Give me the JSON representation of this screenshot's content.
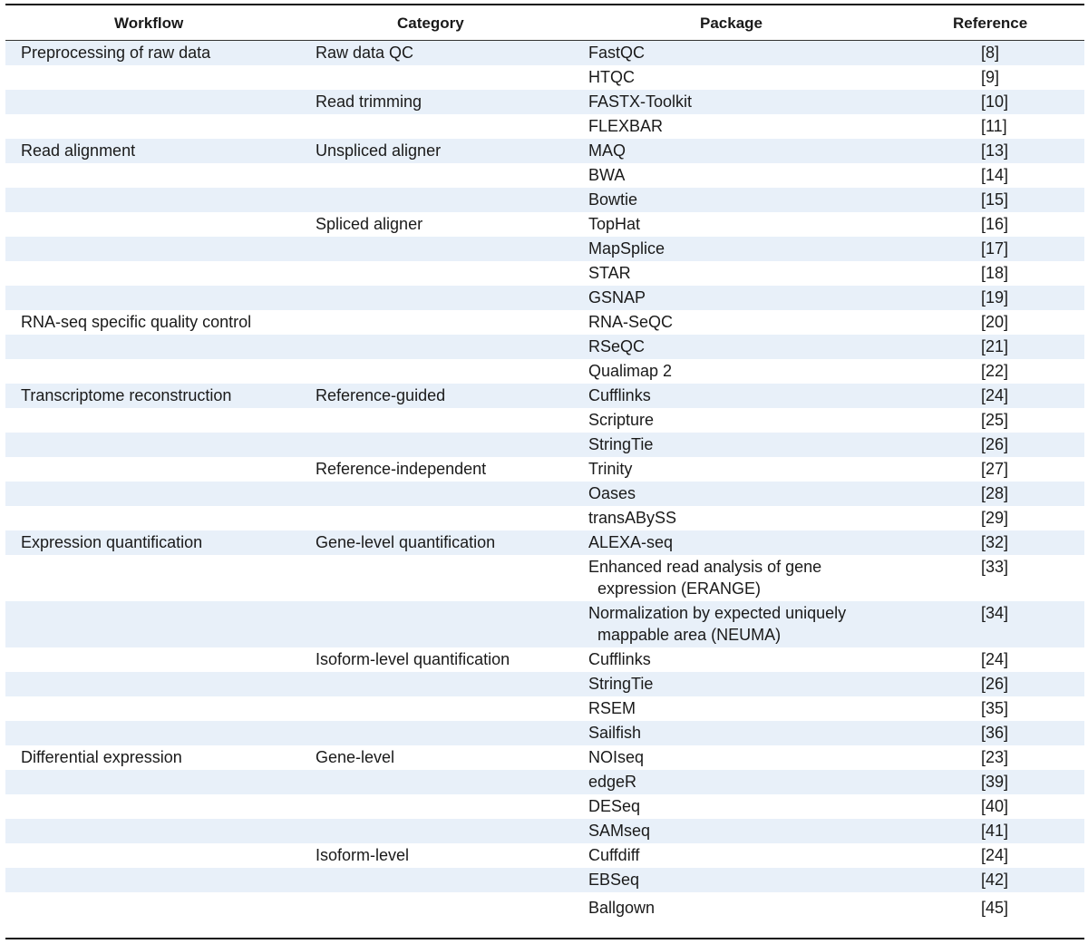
{
  "headers": {
    "workflow": "Workflow",
    "category": "Category",
    "package": "Package",
    "reference": "Reference"
  },
  "rows": [
    {
      "workflow": "Preprocessing of raw data",
      "category": "Raw data QC",
      "package": "FastQC",
      "reference": "[8]"
    },
    {
      "workflow": "",
      "category": "",
      "package": "HTQC",
      "reference": "[9]"
    },
    {
      "workflow": "",
      "category": "Read trimming",
      "package": "FASTX-Toolkit",
      "reference": "[10]"
    },
    {
      "workflow": "",
      "category": "",
      "package": "FLEXBAR",
      "reference": "[11]"
    },
    {
      "workflow": "Read alignment",
      "category": "Unspliced aligner",
      "package": "MAQ",
      "reference": "[13]"
    },
    {
      "workflow": "",
      "category": "",
      "package": "BWA",
      "reference": "[14]"
    },
    {
      "workflow": "",
      "category": "",
      "package": "Bowtie",
      "reference": "[15]"
    },
    {
      "workflow": "",
      "category": "Spliced aligner",
      "package": "TopHat",
      "reference": "[16]"
    },
    {
      "workflow": "",
      "category": "",
      "package": "MapSplice",
      "reference": "[17]"
    },
    {
      "workflow": "",
      "category": "",
      "package": "STAR",
      "reference": "[18]"
    },
    {
      "workflow": "",
      "category": "",
      "package": "GSNAP",
      "reference": "[19]"
    },
    {
      "workflow": "RNA-seq specific quality control",
      "category": "",
      "package": "RNA-SeQC",
      "reference": "[20]"
    },
    {
      "workflow": "",
      "category": "",
      "package": "RSeQC",
      "reference": "[21]"
    },
    {
      "workflow": "",
      "category": "",
      "package": "Qualimap 2",
      "reference": "[22]"
    },
    {
      "workflow": "Transcriptome reconstruction",
      "category": "Reference-guided",
      "package": "Cufflinks",
      "reference": "[24]"
    },
    {
      "workflow": "",
      "category": "",
      "package": "Scripture",
      "reference": "[25]"
    },
    {
      "workflow": "",
      "category": "",
      "package": "StringTie",
      "reference": "[26]"
    },
    {
      "workflow": "",
      "category": "Reference-independent",
      "package": "Trinity",
      "reference": "[27]"
    },
    {
      "workflow": "",
      "category": "",
      "package": "Oases",
      "reference": "[28]"
    },
    {
      "workflow": "",
      "category": "",
      "package": "transABySS",
      "reference": "[29]"
    },
    {
      "workflow": "Expression quantification",
      "category": "Gene-level quantification",
      "package": "ALEXA-seq",
      "reference": "[32]"
    },
    {
      "workflow": "",
      "category": "",
      "package": "Enhanced read analysis of gene",
      "package2": "expression (ERANGE)",
      "reference": "[33]"
    },
    {
      "workflow": "",
      "category": "",
      "package": "Normalization by expected uniquely",
      "package2": "mappable area (NEUMA)",
      "reference": "[34]"
    },
    {
      "workflow": "",
      "category": "Isoform-level quantification",
      "package": "Cufflinks",
      "reference": "[24]"
    },
    {
      "workflow": "",
      "category": "",
      "package": "StringTie",
      "reference": "[26]"
    },
    {
      "workflow": "",
      "category": "",
      "package": "RSEM",
      "reference": "[35]"
    },
    {
      "workflow": "",
      "category": "",
      "package": "Sailfish",
      "reference": "[36]"
    },
    {
      "workflow": "Differential expression",
      "category": "Gene-level",
      "package": "NOIseq",
      "reference": "[23]"
    },
    {
      "workflow": "",
      "category": "",
      "package": "edgeR",
      "reference": "[39]"
    },
    {
      "workflow": "",
      "category": "",
      "package": "DESeq",
      "reference": "[40]"
    },
    {
      "workflow": "",
      "category": "",
      "package": "SAMseq",
      "reference": "[41]"
    },
    {
      "workflow": "",
      "category": "Isoform-level",
      "package": "Cuffdiff",
      "reference": "[24]"
    },
    {
      "workflow": "",
      "category": "",
      "package": "EBSeq",
      "reference": "[42]"
    },
    {
      "workflow": "",
      "category": "",
      "package": "Ballgown",
      "reference": "[45]"
    }
  ],
  "colors": {
    "shade": "#e8f0f9",
    "rule": "#111111"
  }
}
